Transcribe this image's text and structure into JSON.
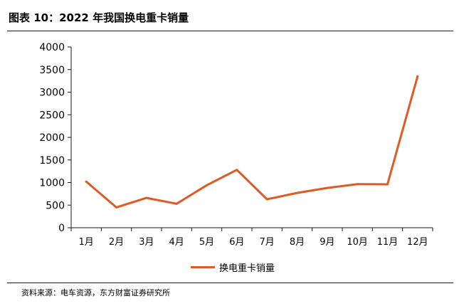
{
  "figure": {
    "title": "图表 10：2022 年我国换电重卡销量",
    "source": "资料来源：电车资源，东方财富证券研究所"
  },
  "chart_data": {
    "type": "line",
    "title": "",
    "xlabel": "",
    "ylabel": "",
    "categories": [
      "1月",
      "2月",
      "3月",
      "4月",
      "5月",
      "6月",
      "7月",
      "8月",
      "9月",
      "10月",
      "11月",
      "12月"
    ],
    "series": [
      {
        "name": "换电重卡销量",
        "color": "#e05a23",
        "values": [
          1020,
          450,
          660,
          530,
          940,
          1280,
          630,
          770,
          880,
          965,
          960,
          3350
        ]
      }
    ],
    "ylim": [
      0,
      4000
    ],
    "yticks": [
      0,
      500,
      1000,
      1500,
      2000,
      2500,
      3000,
      3500,
      4000
    ],
    "grid": false,
    "legend": "bottom-center"
  }
}
